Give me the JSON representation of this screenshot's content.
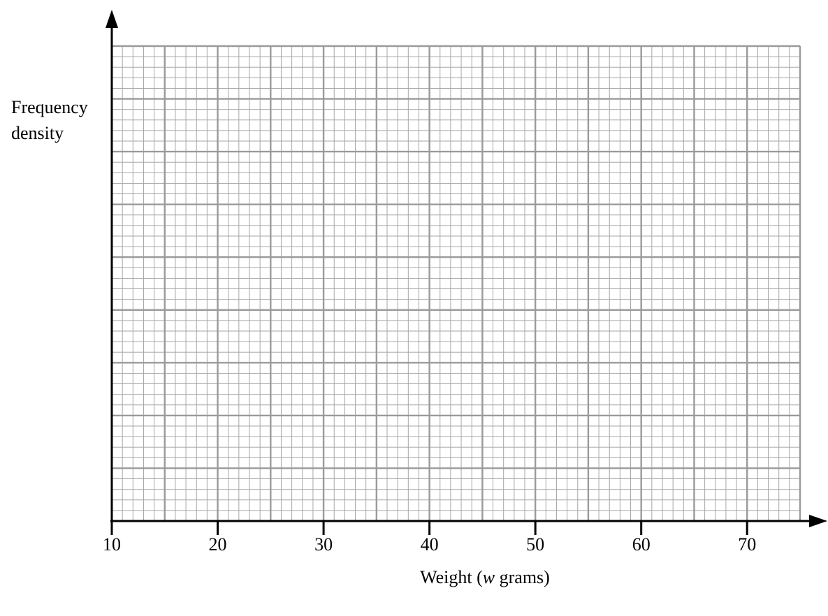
{
  "chart_data": {
    "type": "histogram",
    "title": "",
    "xlabel_parts": [
      "Weight (",
      "w",
      " grams)"
    ],
    "ylabel_lines": [
      "Frequency",
      "density"
    ],
    "xlim": [
      10,
      75
    ],
    "x_ticks": [
      10,
      20,
      30,
      40,
      50,
      60,
      70
    ],
    "x_tick_labels": [
      "10",
      "20",
      "30",
      "40",
      "50",
      "60",
      "70"
    ],
    "x_major_grid_step": 5,
    "x_minor_grid_step": 1,
    "y_major_grid_lines": 9,
    "y_minor_per_major": 5,
    "y_tick_labels": [],
    "grid": true,
    "series": []
  }
}
